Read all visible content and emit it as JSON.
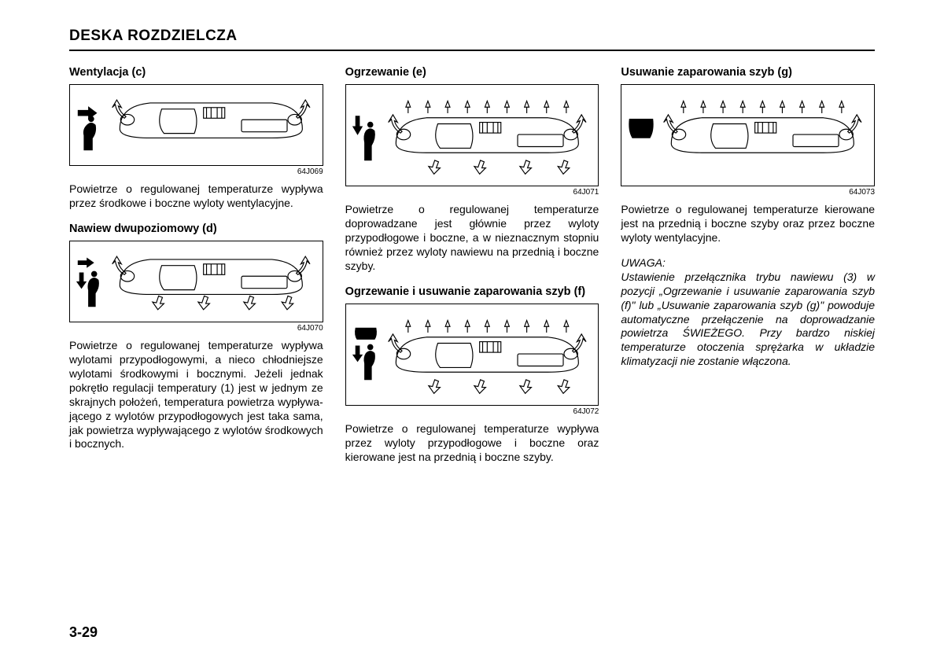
{
  "page": {
    "title": "DESKA ROZDZIELCZA",
    "number": "3-29"
  },
  "columns": [
    {
      "sections": [
        {
          "heading": "Wentylacja (c)",
          "figure": {
            "label": "64J069",
            "icon": "face",
            "top_arrows": false,
            "down_arrows": false,
            "tall": false
          },
          "paragraphs": [
            "Powietrze o regulowanej temperaturze wypływa przez środkowe i boczne wyloty wentylacyjne."
          ]
        },
        {
          "heading": "Nawiew dwupoziomowy (d)",
          "figure": {
            "label": "64J070",
            "icon": "face-foot",
            "top_arrows": false,
            "down_arrows": true,
            "tall": false
          },
          "paragraphs": [
            "Powietrze o regulowanej temperaturze wy­pływa wylotami przypodłogowymi, a nieco chłodniejsze wylotami środkowymi i bocz­nymi. Jeżeli jednak pokrętło regulacji tem­peratury (1) jest w jednym ze skrajnych położeń, temperatura powietrza wypływa­jącego z wylotów przypodłogowych jest taka sama, jak powietrza wypływającego z wylotów środkowych i bocznych."
          ]
        }
      ]
    },
    {
      "sections": [
        {
          "heading": "Ogrzewanie (e)",
          "figure": {
            "label": "64J071",
            "icon": "foot",
            "top_arrows": true,
            "down_arrows": true,
            "tall": true
          },
          "paragraphs": [
            "Powietrze o regulowanej temperaturze doprowadzane jest głównie przez wyloty przypodłogowe i boczne, a w nieznacznym stopniu również przez wyloty nawiewu na przednią i boczne szyby."
          ]
        },
        {
          "heading": "Ogrzewanie i usuwanie zaparowania szyb (f)",
          "figure": {
            "label": "64J072",
            "icon": "defrost-foot",
            "top_arrows": true,
            "down_arrows": true,
            "tall": true
          },
          "paragraphs": [
            "Powietrze o regulowanej temperaturze wypływa przez wyloty przypodłogowe i boczne oraz kierowane jest na przednią i boczne szyby."
          ]
        }
      ]
    },
    {
      "sections": [
        {
          "heading": "Usuwanie zaparowania szyb (g)",
          "figure": {
            "label": "64J073",
            "icon": "defrost",
            "top_arrows": true,
            "down_arrows": false,
            "tall": true
          },
          "paragraphs": [
            "Powietrze o regulowanej temperaturze kierowane jest na przednią i boczne szyby oraz przez boczne wyloty wentylacyjne."
          ]
        }
      ],
      "note": {
        "label": "UWAGA:",
        "text": "Ustawienie przełącznika trybu nawiewu (3) w pozycji „Ogrzewanie i usuwanie zaparo­wania szyb (f)\" lub „Usuwanie zaparowania szyb (g)\" powoduje automatyczne przełączenie na doprowadzanie powietrza ŚWIEŻEGO. Przy bardzo niskiej tempera­turze otoczenia sprężarka w układzie klimatyzacji nie zostanie włączona."
      }
    }
  ]
}
